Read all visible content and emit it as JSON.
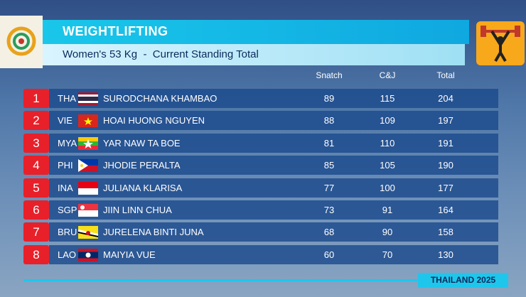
{
  "header": {
    "title": "WEIGHTLIFTING",
    "subtitle": "Women's 53 Kg  -  Current Standing Total"
  },
  "table": {
    "columns": [
      "Snatch",
      "C&J",
      "Total"
    ],
    "rows": [
      {
        "rank": 1,
        "country": "THA",
        "name": "SURODCHANA KHAMBAO",
        "snatch": 89,
        "cj": 115,
        "total": 204
      },
      {
        "rank": 2,
        "country": "VIE",
        "name": "HOAI HUONG NGUYEN",
        "snatch": 88,
        "cj": 109,
        "total": 197
      },
      {
        "rank": 3,
        "country": "MYA",
        "name": "YAR NAW TA BOE",
        "snatch": 81,
        "cj": 110,
        "total": 191
      },
      {
        "rank": 4,
        "country": "PHI",
        "name": "JHODIE PERALTA",
        "snatch": 85,
        "cj": 105,
        "total": 190
      },
      {
        "rank": 5,
        "country": "INA",
        "name": "JULIANA KLARISA",
        "snatch": 77,
        "cj": 100,
        "total": 177
      },
      {
        "rank": 6,
        "country": "SGP",
        "name": "JIIN LINN CHUA",
        "snatch": 73,
        "cj": 91,
        "total": 164
      },
      {
        "rank": 7,
        "country": "BRU",
        "name": "JURELENA BINTI JUNA",
        "snatch": 68,
        "cj": 90,
        "total": 158
      },
      {
        "rank": 8,
        "country": "LAO",
        "name": "MAIYIA VUE",
        "snatch": 60,
        "cj": 70,
        "total": 130
      }
    ]
  },
  "footer": "THAILAND 2025"
}
